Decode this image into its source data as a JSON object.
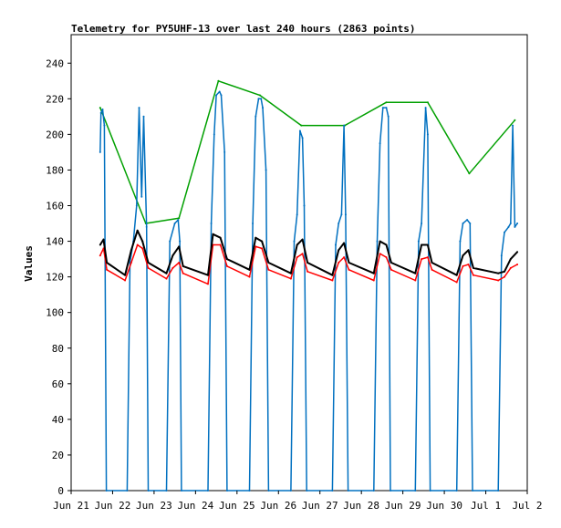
{
  "chart_data": {
    "type": "line",
    "title": "Telemetry for PY5UHF-13 over last 240 hours (2863 points)",
    "ylabel": "Values",
    "xlabel": "",
    "ylim": [
      0,
      256
    ],
    "yticks": [
      0,
      20,
      40,
      60,
      80,
      100,
      120,
      140,
      160,
      180,
      200,
      220,
      240
    ],
    "xticks": [
      {
        "label": "Jun 21",
        "day": 0
      },
      {
        "label": "Jun 22",
        "day": 1
      },
      {
        "label": "Jun 23",
        "day": 2
      },
      {
        "label": "Jun 24",
        "day": 3
      },
      {
        "label": "Jun 25",
        "day": 4
      },
      {
        "label": "Jun 26",
        "day": 5
      },
      {
        "label": "Jun 27",
        "day": 6
      },
      {
        "label": "Jun 28",
        "day": 7
      },
      {
        "label": "Jun 29",
        "day": 8
      },
      {
        "label": "Jun 30",
        "day": 9
      },
      {
        "label": "Jul 1",
        "day": 10
      },
      {
        "label": "Jul 2",
        "day": 11
      }
    ],
    "xlim_days": [
      0,
      11
    ],
    "grid": false,
    "series": [
      {
        "color": "#00a000",
        "points": [
          [
            0.7,
            215
          ],
          [
            1.8,
            150
          ],
          [
            2.6,
            153
          ],
          [
            3.55,
            230
          ],
          [
            4.55,
            222
          ],
          [
            5.55,
            205
          ],
          [
            6.6,
            205
          ],
          [
            7.6,
            218
          ],
          [
            8.6,
            218
          ],
          [
            9.6,
            178
          ],
          [
            10.7,
            208
          ]
        ]
      },
      {
        "color": "#0070c0",
        "points": [
          [
            0.7,
            190
          ],
          [
            0.72,
            212
          ],
          [
            0.76,
            214
          ],
          [
            0.8,
            205
          ],
          [
            0.85,
            0
          ],
          [
            1.35,
            0
          ],
          [
            1.42,
            128
          ],
          [
            1.5,
            140
          ],
          [
            1.58,
            160
          ],
          [
            1.64,
            215
          ],
          [
            1.7,
            165
          ],
          [
            1.75,
            210
          ],
          [
            1.82,
            148
          ],
          [
            1.86,
            0
          ],
          [
            2.3,
            0
          ],
          [
            2.38,
            140
          ],
          [
            2.5,
            150
          ],
          [
            2.58,
            152
          ],
          [
            2.62,
            140
          ],
          [
            2.66,
            0
          ],
          [
            3.3,
            0
          ],
          [
            3.38,
            150
          ],
          [
            3.45,
            200
          ],
          [
            3.5,
            222
          ],
          [
            3.58,
            224
          ],
          [
            3.62,
            222
          ],
          [
            3.7,
            190
          ],
          [
            3.76,
            0
          ],
          [
            4.3,
            0
          ],
          [
            4.38,
            150
          ],
          [
            4.45,
            210
          ],
          [
            4.52,
            220
          ],
          [
            4.58,
            220
          ],
          [
            4.62,
            215
          ],
          [
            4.7,
            180
          ],
          [
            4.76,
            0
          ],
          [
            5.3,
            0
          ],
          [
            5.38,
            140
          ],
          [
            5.45,
            155
          ],
          [
            5.52,
            202
          ],
          [
            5.58,
            198
          ],
          [
            5.62,
            160
          ],
          [
            5.68,
            0
          ],
          [
            6.3,
            0
          ],
          [
            6.38,
            138
          ],
          [
            6.45,
            150
          ],
          [
            6.52,
            155
          ],
          [
            6.58,
            205
          ],
          [
            6.62,
            155
          ],
          [
            6.68,
            0
          ],
          [
            7.3,
            0
          ],
          [
            7.38,
            140
          ],
          [
            7.45,
            195
          ],
          [
            7.52,
            215
          ],
          [
            7.6,
            215
          ],
          [
            7.65,
            210
          ],
          [
            7.7,
            0
          ],
          [
            8.3,
            0
          ],
          [
            8.38,
            140
          ],
          [
            8.45,
            150
          ],
          [
            8.55,
            215
          ],
          [
            8.6,
            200
          ],
          [
            8.66,
            0
          ],
          [
            9.3,
            0
          ],
          [
            9.38,
            140
          ],
          [
            9.45,
            150
          ],
          [
            9.55,
            152
          ],
          [
            9.62,
            150
          ],
          [
            9.68,
            0
          ],
          [
            10.3,
            0
          ],
          [
            10.38,
            132
          ],
          [
            10.45,
            145
          ],
          [
            10.55,
            148
          ],
          [
            10.6,
            150
          ],
          [
            10.65,
            205
          ],
          [
            10.7,
            148
          ],
          [
            10.76,
            150
          ]
        ]
      },
      {
        "color": "#ff0000",
        "points": [
          [
            0.7,
            132
          ],
          [
            0.78,
            136
          ],
          [
            0.86,
            124
          ],
          [
            1.3,
            118
          ],
          [
            1.45,
            128
          ],
          [
            1.6,
            138
          ],
          [
            1.72,
            136
          ],
          [
            1.86,
            125
          ],
          [
            2.3,
            119
          ],
          [
            2.45,
            125
          ],
          [
            2.6,
            128
          ],
          [
            2.7,
            122
          ],
          [
            3.3,
            116
          ],
          [
            3.42,
            138
          ],
          [
            3.6,
            138
          ],
          [
            3.76,
            126
          ],
          [
            4.3,
            120
          ],
          [
            4.45,
            137
          ],
          [
            4.6,
            136
          ],
          [
            4.76,
            124
          ],
          [
            5.3,
            119
          ],
          [
            5.45,
            131
          ],
          [
            5.58,
            133
          ],
          [
            5.7,
            123
          ],
          [
            6.3,
            118
          ],
          [
            6.45,
            128
          ],
          [
            6.58,
            131
          ],
          [
            6.7,
            124
          ],
          [
            7.3,
            118
          ],
          [
            7.45,
            133
          ],
          [
            7.6,
            131
          ],
          [
            7.72,
            124
          ],
          [
            8.3,
            118
          ],
          [
            8.45,
            130
          ],
          [
            8.6,
            131
          ],
          [
            8.7,
            124
          ],
          [
            9.3,
            117
          ],
          [
            9.45,
            126
          ],
          [
            9.58,
            127
          ],
          [
            9.7,
            121
          ],
          [
            10.3,
            118
          ],
          [
            10.45,
            120
          ],
          [
            10.6,
            125
          ],
          [
            10.76,
            127
          ]
        ]
      },
      {
        "color": "#000000",
        "points": [
          [
            0.7,
            138
          ],
          [
            0.78,
            141
          ],
          [
            0.86,
            128
          ],
          [
            1.3,
            121
          ],
          [
            1.45,
            135
          ],
          [
            1.6,
            146
          ],
          [
            1.72,
            140
          ],
          [
            1.86,
            128
          ],
          [
            2.3,
            122
          ],
          [
            2.45,
            132
          ],
          [
            2.6,
            137
          ],
          [
            2.7,
            126
          ],
          [
            3.3,
            121
          ],
          [
            3.42,
            144
          ],
          [
            3.6,
            142
          ],
          [
            3.76,
            130
          ],
          [
            4.3,
            124
          ],
          [
            4.45,
            142
          ],
          [
            4.6,
            140
          ],
          [
            4.76,
            128
          ],
          [
            5.3,
            122
          ],
          [
            5.45,
            138
          ],
          [
            5.58,
            141
          ],
          [
            5.7,
            128
          ],
          [
            6.3,
            121
          ],
          [
            6.45,
            135
          ],
          [
            6.58,
            139
          ],
          [
            6.7,
            128
          ],
          [
            7.3,
            122
          ],
          [
            7.45,
            140
          ],
          [
            7.6,
            138
          ],
          [
            7.72,
            128
          ],
          [
            8.3,
            122
          ],
          [
            8.45,
            138
          ],
          [
            8.6,
            138
          ],
          [
            8.7,
            128
          ],
          [
            9.3,
            121
          ],
          [
            9.45,
            132
          ],
          [
            9.58,
            135
          ],
          [
            9.7,
            125
          ],
          [
            10.3,
            122
          ],
          [
            10.45,
            123
          ],
          [
            10.6,
            130
          ],
          [
            10.76,
            134
          ]
        ]
      }
    ]
  }
}
